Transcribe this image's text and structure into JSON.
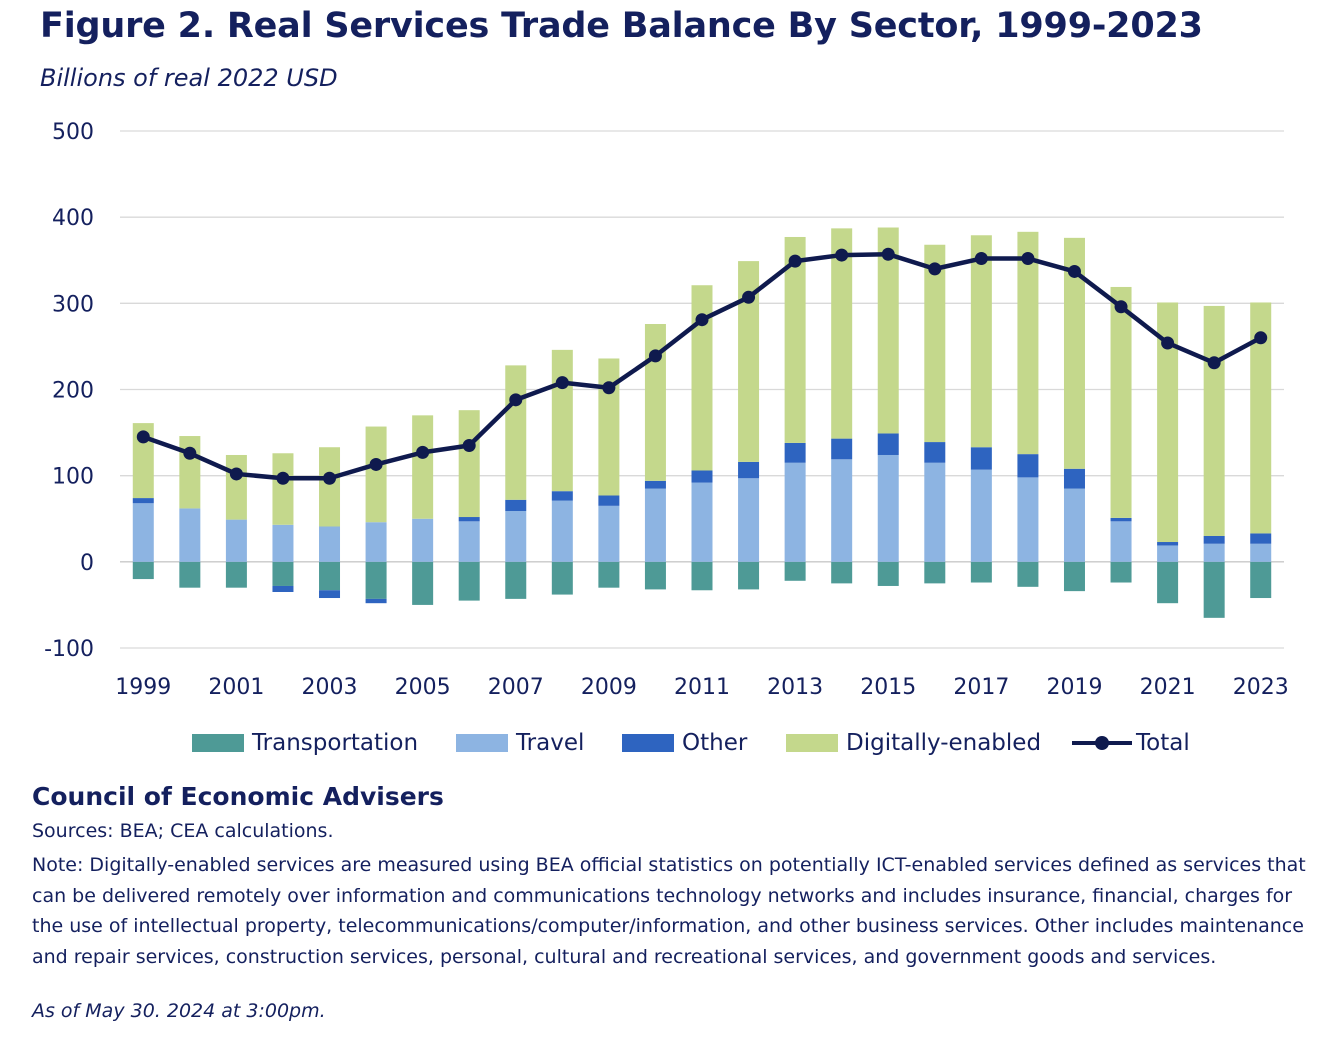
{
  "header": {
    "title": "Figure 2. Real Services Trade Balance By Sector, 1999-2023",
    "subtitle": "Billions of real 2022 USD"
  },
  "footer": {
    "org": "Council of Economic Advisers",
    "sources": "Sources: BEA; CEA calculations.",
    "note": "Note: Digitally-enabled services are measured using BEA official statistics on potentially ICT-enabled services defined as services that can be delivered remotely over information and communications technology networks and includes insurance, financial, charges for the use of intellectual property, telecommunications/computer/information, and other business services. Other includes maintenance and repair services, construction services, personal, cultural and recreational services, and government goods and services.",
    "as_of": "As of May 30. 2024 at 3:00pm."
  },
  "chart_data": {
    "type": "bar",
    "stacked": true,
    "title": "Figure 2. Real Services Trade Balance By Sector, 1999-2023",
    "ylabel": "Billions of real 2022 USD",
    "ylim": [
      -100,
      500
    ],
    "yticks": [
      -100,
      0,
      100,
      200,
      300,
      400,
      500
    ],
    "xtick_labels": [
      "1999",
      "2001",
      "2003",
      "2005",
      "2007",
      "2009",
      "2011",
      "2013",
      "2015",
      "2017",
      "2019",
      "2021",
      "2023"
    ],
    "grid": true,
    "legend_position": "bottom",
    "categories": [
      "1999",
      "2000",
      "2001",
      "2002",
      "2003",
      "2004",
      "2005",
      "2006",
      "2007",
      "2008",
      "2009",
      "2010",
      "2011",
      "2012",
      "2013",
      "2014",
      "2015",
      "2016",
      "2017",
      "2018",
      "2019",
      "2020",
      "2021",
      "2022",
      "2023"
    ],
    "series": [
      {
        "name": "Transportation",
        "color": "#4e9a96",
        "values": [
          -20,
          -30,
          -30,
          -28,
          -33,
          -43,
          -50,
          -45,
          -43,
          -38,
          -30,
          -32,
          -33,
          -32,
          -22,
          -25,
          -28,
          -25,
          -24,
          -29,
          -34,
          -24,
          -48,
          -65,
          -42
        ]
      },
      {
        "name": "Travel",
        "color": "#8db4e2",
        "values": [
          68,
          62,
          49,
          43,
          41,
          46,
          50,
          47,
          59,
          71,
          65,
          85,
          92,
          97,
          115,
          119,
          124,
          115,
          107,
          98,
          85,
          47,
          19,
          21,
          21
        ]
      },
      {
        "name": "Other",
        "color": "#2e64c0",
        "values": [
          6,
          0,
          0,
          -7,
          -9,
          -5,
          0,
          5,
          13,
          11,
          12,
          9,
          14,
          19,
          23,
          24,
          25,
          24,
          26,
          27,
          23,
          4,
          4,
          9,
          12
        ]
      },
      {
        "name": "Digitally-enabled",
        "color": "#c4d88c",
        "values": [
          87,
          84,
          75,
          83,
          92,
          111,
          120,
          124,
          156,
          164,
          159,
          182,
          215,
          233,
          239,
          244,
          239,
          229,
          246,
          258,
          268,
          268,
          278,
          267,
          268
        ]
      }
    ],
    "total": {
      "name": "Total",
      "color": "#0f1a4e",
      "values": [
        145,
        126,
        102,
        97,
        97,
        113,
        127,
        135,
        188,
        208,
        202,
        239,
        281,
        307,
        349,
        356,
        357,
        340,
        352,
        352,
        337,
        296,
        254,
        231,
        260
      ]
    }
  }
}
